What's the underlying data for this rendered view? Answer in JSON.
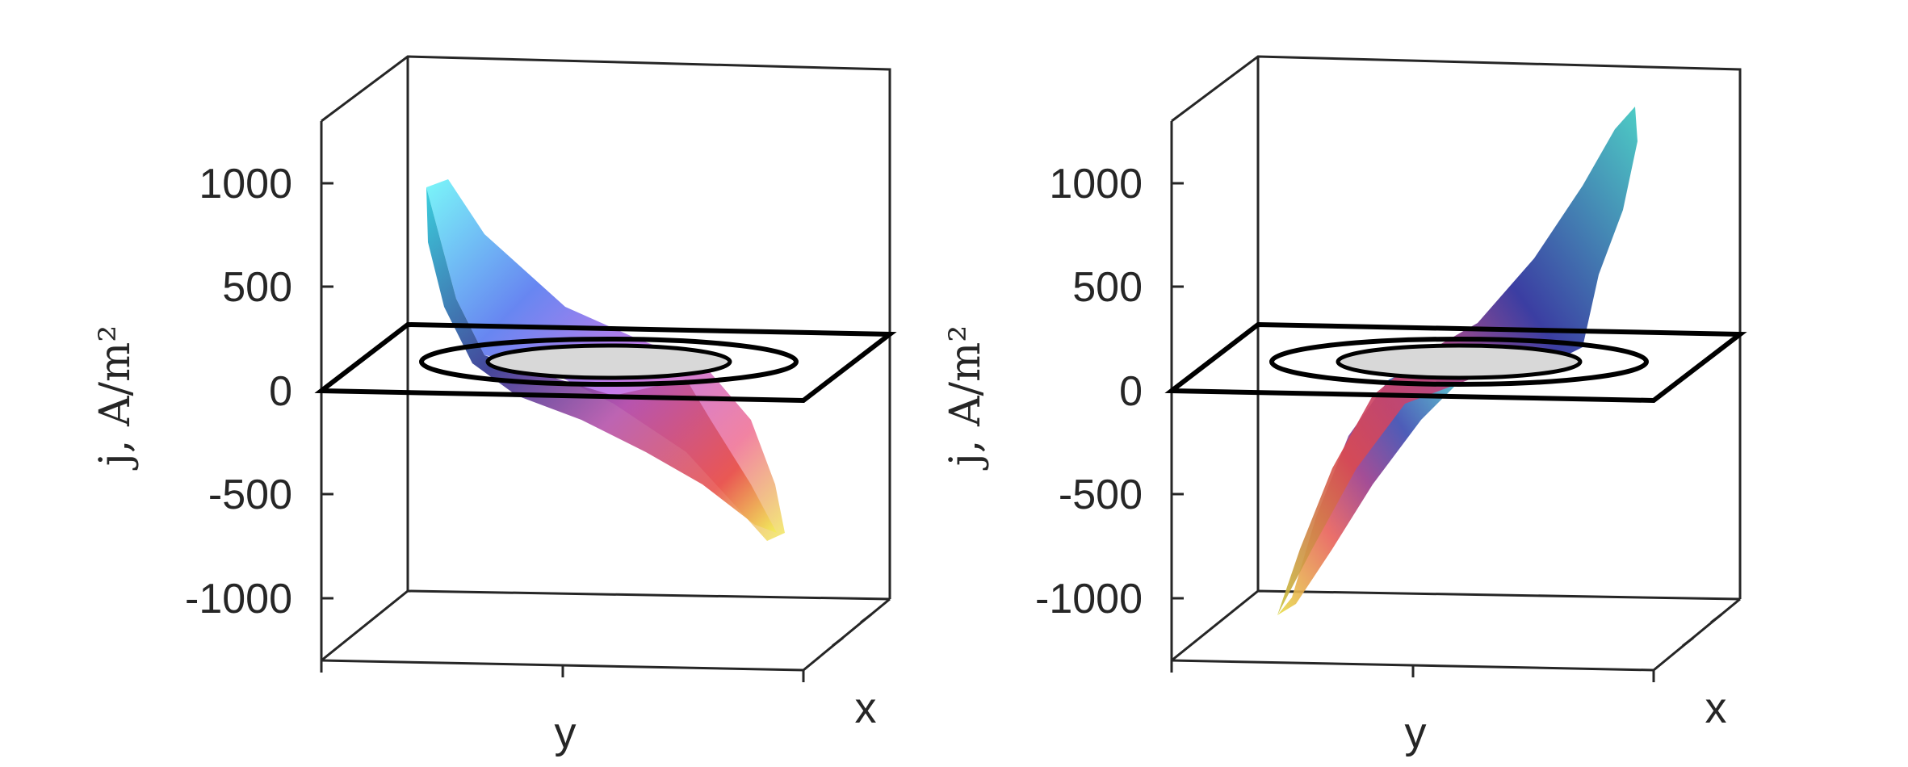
{
  "chart_data": [
    {
      "type": "surface",
      "zlabel": "j, A/m²",
      "xlabel": "x",
      "ylabel": "y",
      "zlim": [
        -1300,
        1300
      ],
      "zticks": [
        "1000",
        "500",
        "0",
        "-500",
        "-1000"
      ],
      "surface": {
        "z_max": 980,
        "z_min": -700,
        "colormap": "cool-to-yellow (cyan, blue, magenta, red, yellow)",
        "shape": "tilted sheet falling from high at left to low at right"
      },
      "reference_plane": {
        "z": 0,
        "contours": [
          "outer ellipse",
          "inner ellipse (grey disk)"
        ]
      }
    },
    {
      "type": "surface",
      "zlabel": "j, A/m²",
      "xlabel": "x",
      "ylabel": "y",
      "zlim": [
        -1300,
        1300
      ],
      "zticks": [
        "1000",
        "500",
        "0",
        "-500",
        "-1000"
      ],
      "surface": {
        "z_max": 1300,
        "z_min": -1050,
        "colormap": "viridis-like (yellow, red, blue, cyan)",
        "shape": "tilted sheet rising from low at left to high at right"
      },
      "reference_plane": {
        "z": 0,
        "contours": [
          "outer ellipse",
          "inner ellipse (grey disk)"
        ]
      }
    }
  ]
}
